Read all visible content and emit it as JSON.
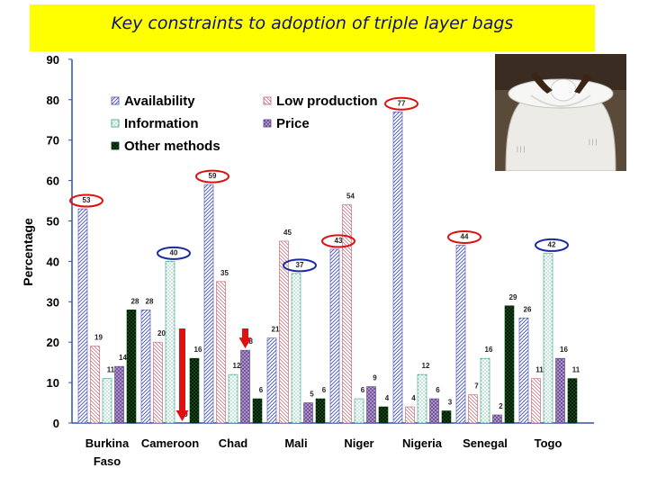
{
  "title": "Key constraints to adoption of triple layer bags",
  "chart_data": {
    "type": "bar",
    "title": "Key constraints to adoption of triple layer bags",
    "ylabel": "Percentage",
    "xlabel": "",
    "ylim": [
      0,
      90
    ],
    "yticks": [
      0,
      10,
      20,
      30,
      40,
      50,
      60,
      70,
      80,
      90
    ],
    "grid": false,
    "legend": "top-left",
    "categories": [
      "Burkina Faso",
      "Cameroon",
      "Chad",
      "Mali",
      "Niger",
      "Nigeria",
      "Senegal",
      "Togo"
    ],
    "series": [
      {
        "name": "Availability",
        "values": [
          53,
          28,
          59,
          21,
          43,
          77,
          44,
          26
        ],
        "color": "#7c84c4"
      },
      {
        "name": "Low production",
        "values": [
          19,
          20,
          35,
          45,
          54,
          4,
          7,
          11
        ],
        "color": "#c98890"
      },
      {
        "name": "Information",
        "values": [
          11,
          40,
          12,
          37,
          6,
          12,
          16,
          42
        ],
        "color": "#66c4a8"
      },
      {
        "name": "Price",
        "values": [
          14,
          0,
          18,
          5,
          9,
          6,
          2,
          16
        ],
        "color": "#8a6aa8"
      },
      {
        "name": "Other methods",
        "values": [
          28,
          16,
          6,
          6,
          4,
          3,
          29,
          11
        ],
        "color": "#0c5e16"
      }
    ],
    "annotations": [
      {
        "type": "red-circle",
        "category": "Burkina Faso",
        "series": "Availability",
        "value": 53
      },
      {
        "type": "blue-circle",
        "category": "Cameroon",
        "series": "Information",
        "value": 40
      },
      {
        "type": "red-arrow",
        "category": "Cameroon",
        "series": "Price",
        "value": 0
      },
      {
        "type": "red-circle",
        "category": "Chad",
        "series": "Availability",
        "value": 59
      },
      {
        "type": "red-arrow",
        "category": "Chad",
        "series": "Price",
        "value": 18
      },
      {
        "type": "blue-circle",
        "category": "Mali",
        "series": "Information",
        "value": 37
      },
      {
        "type": "red-circle",
        "category": "Niger",
        "series": "Availability",
        "value": 43
      },
      {
        "type": "red-circle",
        "category": "Nigeria",
        "series": "Availability",
        "value": 77
      },
      {
        "type": "red-circle",
        "category": "Senegal",
        "series": "Availability",
        "value": 44
      },
      {
        "type": "blue-circle",
        "category": "Togo",
        "series": "Information",
        "value": 42
      }
    ]
  },
  "photo": {
    "icon": "triple-layer-bag-photo"
  }
}
